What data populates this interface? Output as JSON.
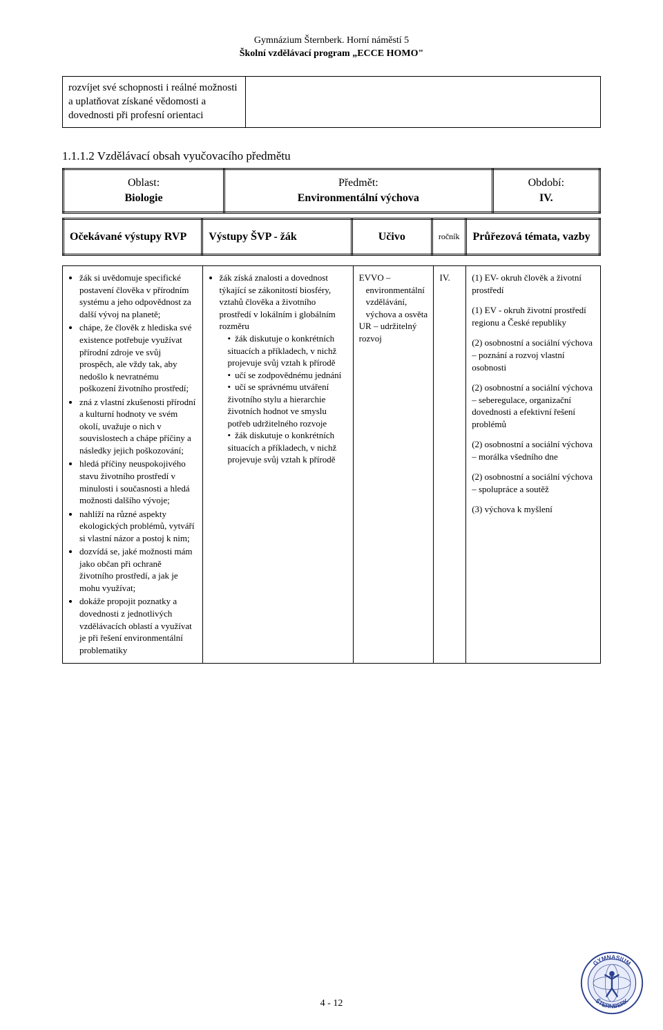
{
  "header": {
    "line1": "Gymnázium Šternberk. Horní náměstí 5",
    "line2": "Školní vzdělávací program „ECCE HOMO\""
  },
  "intro_cell": "rozvíjet své schopnosti i reálné možnosti a uplatňovat získané vědomosti a dovednosti při profesní orientaci",
  "section_heading": "1.1.1.2 Vzdělávací obsah vyučovacího předmětu",
  "overview": {
    "c1_label": "Oblast:",
    "c1_value": "Biologie",
    "c2_label": "Předmět:",
    "c2_value": "Environmentální výchova",
    "c3_label": "Období:",
    "c3_value": "IV."
  },
  "colhdr": {
    "c1": "Očekávané výstupy RVP",
    "c2": "Výstupy ŠVP - žák",
    "c3": "Učivo",
    "c4": "ročník",
    "c5": "Průřezová témata, vazby"
  },
  "col_widths": {
    "c1": "26%",
    "c2": "28%",
    "c3": "15%",
    "c4": "6%",
    "c5": "25%"
  },
  "content": {
    "col1_items": [
      "žák si uvědomuje specifické postavení člověka v přírodním systému a jeho odpovědnost za další vývoj na planetě;",
      "chápe, že člověk z hlediska své existence potřebuje využívat přírodní zdroje ve svůj prospěch, ale vždy tak, aby nedošlo k nevratnému poškození životního prostředí;",
      "zná z vlastní zkušenosti přírodní a kulturní hodnoty ve svém okolí, uvažuje o nich v souvislostech a chápe příčiny a následky jejich poškozování;",
      "hledá příčiny neuspokojivého stavu životního prostředí v minulosti i současnosti a hledá možnosti dalšího vývoje;",
      "nahlíží na různé aspekty ekologických problémů, vytváří si vlastní názor a postoj k nim;",
      "dozvídá se, jaké možnosti mám jako občan při ochraně životního prostředí, a jak je mohu využívat;",
      "dokáže propojit poznatky a dovednosti z jednotlivých vzdělávacích oblastí a využívat je při řešení environmentální problematiky"
    ],
    "col2_main": "žák získá znalosti a dovednost týkající se zákonitostí biosféry, vztahů člověka a životního prostředí v lokálním i globálním rozměru",
    "col2_sub": [
      "žák diskutuje o konkrétních situacích a příkladech, v nichž projevuje svůj vztah k přírodě",
      "učí se zodpovědnému jednání",
      "učí se správnému utváření životního stylu a hierarchie životních hodnot ve smyslu potřeb udržitelného rozvoje",
      "žák diskutuje o konkrétních situacích a příkladech, v nichž projevuje svůj vztah k přírodě"
    ],
    "col3": {
      "line1": "EVVO –",
      "line2": "environmentální vzdělávání, výchova a osvěta",
      "line3": "UR – udržitelný rozvoj"
    },
    "col4": "IV.",
    "col5_paragraphs": [
      "(1) EV- okruh člověk a životní prostředí",
      "(1) EV - okruh životní prostředí regionu a České republiky",
      "(2) osobnostní a sociální výchova – poznání a rozvoj vlastní osobnosti",
      "(2) osobnostní a sociální výchova – seberegulace, organizační dovednosti a efektivní řešení problémů",
      "(2) osobnostní a sociální výchova – morálka všedního dne",
      "(2) osobnostní a sociální výchova – spolupráce a soutěž",
      "(3) výchova k myšlení"
    ]
  },
  "footer": "4 - 12",
  "logo": {
    "top_text": "GYMNASIUM",
    "bottom_text": "ŠTERNBERK",
    "ring_stroke": "#2a3f8f",
    "globe_fill": "#e8ecf5",
    "globe_stroke": "#4a5fa0",
    "figure_color": "#2a3f8f"
  },
  "colors": {
    "text": "#000000",
    "bg": "#ffffff",
    "border": "#000000"
  }
}
